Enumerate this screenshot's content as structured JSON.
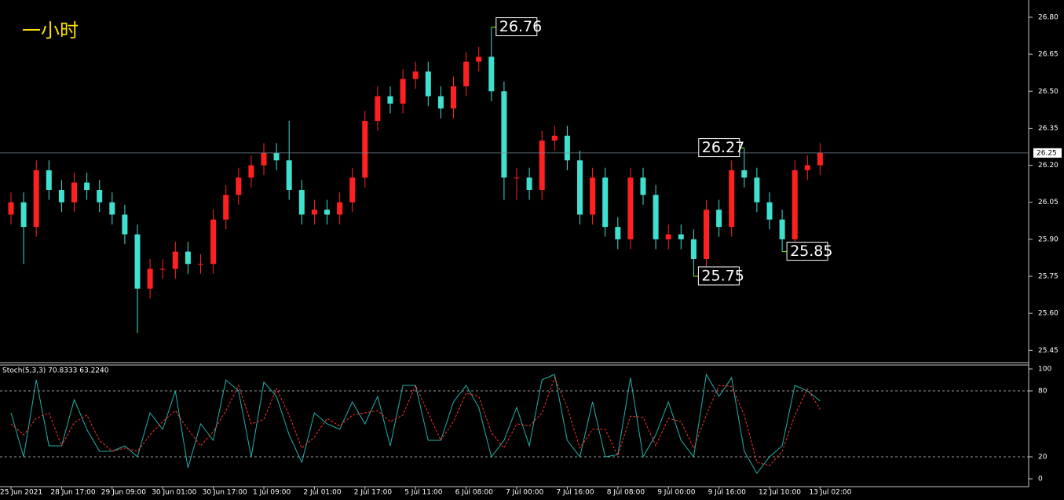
{
  "chart_data": [
    {
      "type": "candlestick",
      "title": "一小时",
      "categories": [
        "25 Jun 2021",
        null,
        null,
        null,
        "28 Jun 17:00",
        null,
        null,
        null,
        "29 Jun 09:00",
        null,
        null,
        null,
        "30 Jun 01:00",
        null,
        null,
        null,
        "30 Jun 17:00",
        null,
        null,
        null,
        "1 Jul 09:00",
        null,
        null,
        null,
        "2 Jul 01:00",
        null,
        null,
        null,
        "2 Jul 17:00",
        null,
        null,
        null,
        "5 Jul 11:00",
        null,
        null,
        null,
        "6 Jul 08:00",
        null,
        null,
        null,
        "7 Jul 00:00",
        null,
        null,
        null,
        "7 Jul 16:00",
        null,
        null,
        null,
        "8 Jul 08:00",
        null,
        null,
        null,
        "9 Jul 00:00",
        null,
        null,
        null,
        "9 Jul 16:00",
        null,
        null,
        null,
        "12 Jul 10:00",
        null,
        null,
        null,
        "13 Jul 02:00"
      ],
      "open": [
        26.0,
        26.05,
        25.95,
        26.18,
        26.1,
        26.05,
        26.13,
        26.1,
        26.05,
        26.0,
        25.92,
        25.7,
        25.78,
        25.78,
        25.85,
        25.8,
        25.8,
        25.98,
        26.08,
        26.15,
        26.2,
        26.25,
        26.22,
        26.1,
        26.0,
        26.02,
        26.0,
        26.05,
        26.15,
        26.38,
        26.48,
        26.45,
        26.55,
        26.58,
        26.48,
        26.43,
        26.52,
        26.62,
        26.64,
        26.5,
        26.15,
        26.15,
        26.1,
        26.3,
        26.32,
        26.22,
        26.0,
        26.15,
        25.95,
        25.9,
        26.15,
        26.08,
        25.9,
        25.92,
        25.9,
        25.82,
        26.02,
        25.95,
        26.18,
        26.15,
        26.05,
        25.98,
        25.9,
        26.18,
        26.2
      ],
      "high": [
        26.09,
        26.09,
        26.22,
        26.22,
        26.14,
        26.17,
        26.17,
        26.14,
        26.09,
        26.04,
        25.96,
        25.82,
        25.82,
        25.89,
        25.89,
        25.84,
        26.02,
        26.12,
        26.19,
        26.24,
        26.29,
        26.29,
        26.38,
        26.14,
        26.06,
        26.06,
        26.09,
        26.19,
        26.42,
        26.52,
        26.52,
        26.59,
        26.62,
        26.62,
        26.52,
        26.56,
        26.66,
        26.68,
        26.76,
        26.54,
        26.19,
        26.19,
        26.34,
        26.36,
        26.36,
        26.26,
        26.19,
        26.19,
        25.99,
        26.19,
        26.19,
        26.12,
        25.96,
        25.96,
        25.94,
        26.06,
        26.06,
        26.22,
        26.27,
        26.19,
        26.09,
        26.02,
        26.22,
        26.24,
        26.29
      ],
      "low": [
        25.96,
        25.8,
        25.91,
        26.06,
        26.01,
        26.01,
        26.06,
        26.01,
        25.96,
        25.88,
        25.52,
        25.66,
        25.74,
        25.74,
        25.76,
        25.76,
        25.76,
        25.94,
        26.04,
        26.11,
        26.16,
        26.18,
        26.06,
        25.96,
        25.96,
        25.96,
        25.96,
        26.01,
        26.11,
        26.34,
        26.41,
        26.41,
        26.51,
        26.44,
        26.39,
        26.39,
        26.48,
        26.58,
        26.46,
        26.06,
        26.06,
        26.06,
        26.06,
        26.26,
        26.18,
        25.96,
        25.96,
        25.91,
        25.86,
        25.86,
        26.04,
        25.86,
        25.86,
        25.86,
        25.75,
        25.78,
        25.91,
        25.91,
        26.11,
        26.01,
        25.94,
        25.85,
        25.86,
        26.14,
        26.16
      ],
      "close": [
        26.05,
        25.95,
        26.18,
        26.1,
        26.05,
        26.13,
        26.1,
        26.05,
        26.0,
        25.92,
        25.7,
        25.78,
        25.78,
        25.85,
        25.8,
        25.8,
        25.98,
        26.08,
        26.15,
        26.2,
        26.25,
        26.22,
        26.1,
        26.0,
        26.02,
        26.0,
        26.05,
        26.15,
        26.38,
        26.48,
        26.45,
        26.55,
        26.58,
        26.48,
        26.43,
        26.52,
        26.62,
        26.64,
        26.5,
        26.15,
        26.15,
        26.1,
        26.3,
        26.32,
        26.22,
        26.0,
        26.15,
        25.95,
        25.9,
        26.15,
        26.08,
        25.9,
        25.92,
        25.9,
        25.82,
        26.02,
        25.95,
        26.18,
        26.15,
        26.05,
        25.98,
        25.9,
        26.18,
        26.2,
        26.25
      ],
      "up_color": "#ff2020",
      "down_color": "#40e0d0",
      "annotations": [
        26.76,
        26.27,
        25.75,
        25.85
      ],
      "ylim": [
        25.4,
        26.87
      ],
      "yticks": [
        25.45,
        {
          "value": 25.6,
          "label": "25.60"
        },
        25.75,
        {
          "value": 25.9,
          "label": "25.90"
        },
        26.05,
        {
          "value": 26.2,
          "label": "26.20"
        },
        26.35,
        {
          "value": 26.5,
          "label": "26.50"
        },
        26.65,
        {
          "value": 26.8,
          "label": "26.80"
        }
      ],
      "grid": false
    },
    {
      "type": "line",
      "title": "Stoch(5,3,3) 70.8333 63.2240",
      "series": [
        {
          "color": "#20b2aa",
          "values": [
            60,
            20,
            90,
            30,
            30,
            72,
            45,
            25,
            25,
            30,
            20,
            60,
            45,
            80,
            10,
            50,
            35,
            90,
            80,
            20,
            88,
            75,
            40,
            15,
            60,
            50,
            45,
            70,
            50,
            75,
            30,
            85,
            85,
            35,
            35,
            70,
            85,
            65,
            20,
            35,
            65,
            30,
            90,
            95,
            35,
            20,
            70,
            20,
            22,
            92,
            20,
            40,
            70,
            35,
            20,
            95,
            75,
            92,
            25,
            5,
            20,
            30,
            85,
            80,
            70.8333
          ]
        },
        {
          "color": "#ff3030",
          "dashed": true,
          "values": [
            50,
            40,
            55,
            60,
            30,
            51,
            58,
            35,
            25,
            28,
            25,
            40,
            52,
            62,
            45,
            30,
            43,
            62,
            85,
            50,
            54,
            82,
            58,
            28,
            38,
            55,
            48,
            58,
            60,
            62,
            52,
            58,
            85,
            60,
            35,
            52,
            78,
            75,
            42,
            28,
            50,
            48,
            60,
            92,
            65,
            28,
            45,
            45,
            21,
            57,
            56,
            30,
            55,
            52,
            28,
            58,
            85,
            84,
            58,
            15,
            12,
            25,
            58,
            82,
            63.224
          ]
        }
      ],
      "levels": [
        20,
        80
      ],
      "ylim": [
        0,
        100
      ],
      "yticks": [
        0,
        20,
        80,
        100
      ]
    }
  ]
}
